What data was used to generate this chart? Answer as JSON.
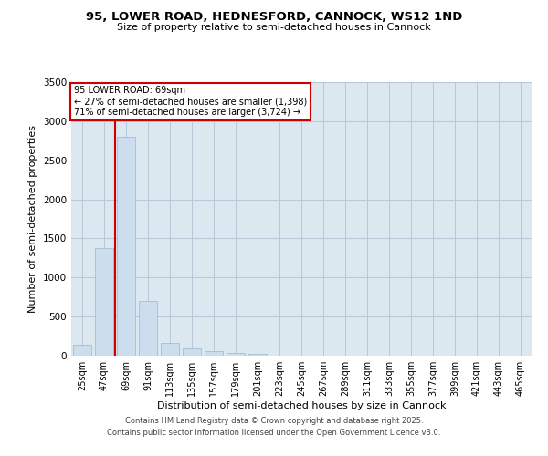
{
  "title_line1": "95, LOWER ROAD, HEDNESFORD, CANNOCK, WS12 1ND",
  "title_line2": "Size of property relative to semi-detached houses in Cannock",
  "xlabel": "Distribution of semi-detached houses by size in Cannock",
  "ylabel": "Number of semi-detached properties",
  "annotation_title": "95 LOWER ROAD: 69sqm",
  "annotation_line2": "← 27% of semi-detached houses are smaller (1,398)",
  "annotation_line3": "71% of semi-detached houses are larger (3,724) →",
  "property_bin_index": 2,
  "categories": [
    "25sqm",
    "47sqm",
    "69sqm",
    "91sqm",
    "113sqm",
    "135sqm",
    "157sqm",
    "179sqm",
    "201sqm",
    "223sqm",
    "245sqm",
    "267sqm",
    "289sqm",
    "311sqm",
    "333sqm",
    "355sqm",
    "377sqm",
    "399sqm",
    "421sqm",
    "443sqm",
    "465sqm"
  ],
  "values": [
    135,
    1380,
    2800,
    700,
    160,
    90,
    55,
    30,
    25,
    0,
    0,
    0,
    0,
    0,
    0,
    0,
    0,
    0,
    0,
    0,
    0
  ],
  "bar_color": "#ccdded",
  "bar_edge_color": "#9ab8cc",
  "highlight_line_color": "#cc0000",
  "ylim": [
    0,
    3500
  ],
  "yticks": [
    0,
    500,
    1000,
    1500,
    2000,
    2500,
    3000,
    3500
  ],
  "background_color": "#ffffff",
  "axes_bg_color": "#dce8f0",
  "grid_color": "#b8c8d8",
  "footnote_line1": "Contains HM Land Registry data © Crown copyright and database right 2025.",
  "footnote_line2": "Contains public sector information licensed under the Open Government Licence v3.0."
}
